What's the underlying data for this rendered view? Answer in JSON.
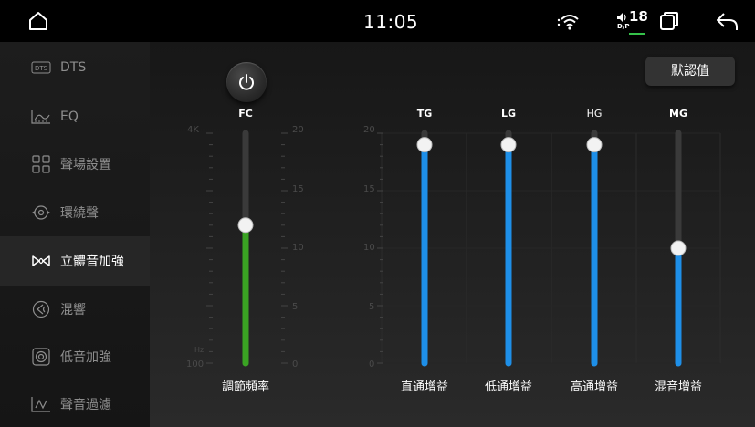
{
  "status_bar": {
    "time": "11:05",
    "volume": "18",
    "volume_sublabel": "D/P",
    "accent_line_color": "#35c14a"
  },
  "sidebar": {
    "items": [
      {
        "label": "DTS",
        "icon": "dts-icon",
        "active": false
      },
      {
        "label": "EQ",
        "icon": "eq-icon",
        "active": false
      },
      {
        "label": "聲場設置",
        "icon": "sound-field-icon",
        "active": false
      },
      {
        "label": "環繞聲",
        "icon": "surround-icon",
        "active": false
      },
      {
        "label": "立體音加強",
        "icon": "stereo-enhance-icon",
        "active": true
      },
      {
        "label": "混響",
        "icon": "reverb-icon",
        "active": false
      },
      {
        "label": "低音加強",
        "icon": "bass-boost-icon",
        "active": false
      },
      {
        "label": "聲音過濾",
        "icon": "sound-filter-icon",
        "active": false
      }
    ]
  },
  "controls": {
    "reset_label": "默認值",
    "power_icon": "power-icon"
  },
  "fc_slider": {
    "title": "FC",
    "label": "調節頻率",
    "left_top_label": "4K",
    "left_unit_label": "Hz",
    "left_bottom_label": "100",
    "scale_labels": [
      "20",
      "15",
      "10",
      "5",
      "0"
    ],
    "value": 12,
    "max": 20,
    "color": "#3aa323"
  },
  "gain_axis": {
    "labels": [
      "20",
      "15",
      "10",
      "5",
      "0"
    ]
  },
  "gain_sliders": [
    {
      "title": "TG",
      "label": "直通增益",
      "value": 19,
      "max": 20,
      "color": "#1e8fe8"
    },
    {
      "title": "LG",
      "label": "低通增益",
      "value": 19,
      "max": 20,
      "color": "#1e8fe8"
    },
    {
      "title": "HG",
      "label": "高通增益",
      "value": 19,
      "max": 20,
      "color": "#1e8fe8"
    },
    {
      "title": "MG",
      "label": "混音增益",
      "value": 10,
      "max": 20,
      "color": "#1e8fe8"
    }
  ]
}
